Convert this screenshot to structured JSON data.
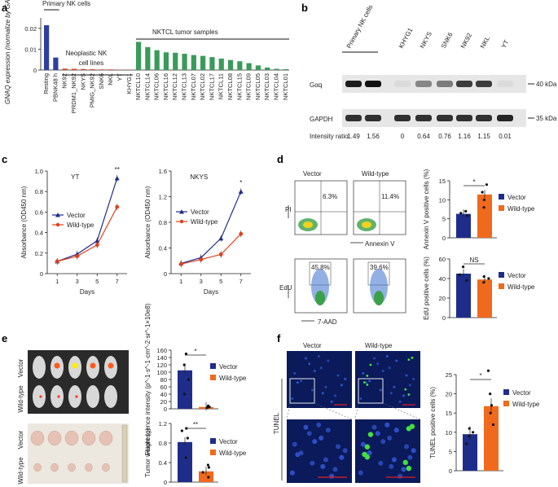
{
  "panel_labels": [
    "a",
    "b",
    "c",
    "d",
    "e",
    "f"
  ],
  "colors": {
    "vector": "#1f2d8a",
    "wildtype": "#f06a1d",
    "green": "#3a9a5a",
    "red": "#d94a2a",
    "primary": "#2f3f9e"
  },
  "chart_data": [
    {
      "id": "a",
      "type": "bar",
      "title": "",
      "ylabel": "GNAQ expression (normalize by GAPDH)",
      "ylim": [
        0,
        0.025
      ],
      "yticks": [
        "0",
        "0.01",
        "0.02"
      ],
      "group_labels": [
        "Primary NK cells",
        "Neoplastic NK cell lines",
        "NKTCL tumor samples"
      ],
      "categories": [
        "Resting",
        "PBNK48 h",
        "NK92",
        "PRDM1_NK92",
        "NKYS",
        "PMIG_NK92",
        "SNK6",
        "NKL",
        "YT",
        "KHYG1",
        "NKTCL10",
        "NKTCL14",
        "NKTCL06",
        "NKTCL16",
        "NKTCL12",
        "NKTCL13",
        "NKTCL07",
        "NKTCL02",
        "NKTCL17",
        "NKTCL11",
        "NKTCL08",
        "NKTCL15",
        "NKTCL09",
        "NKTCL05",
        "NKTCL03",
        "NKTCL04",
        "NKTCL01"
      ],
      "values": [
        0.0215,
        0.006,
        0.0007,
        0.0006,
        0.0005,
        0.0004,
        0.0003,
        0.0003,
        0.0002,
        0.0001,
        0.0135,
        0.011,
        0.0095,
        0.0085,
        0.0083,
        0.0078,
        0.0072,
        0.0068,
        0.0062,
        0.0055,
        0.0048,
        0.0042,
        0.0033,
        0.0022,
        0.0012,
        0.0006,
        0.0004
      ]
    },
    {
      "id": "b",
      "type": "table",
      "header_group": "Primary NK cells",
      "lanes": [
        "KHYG1",
        "NKYS",
        "SNK6",
        "NK92",
        "NKL",
        "YT"
      ],
      "rows": [
        "Gαq",
        "GAPDH"
      ],
      "markers": [
        "40 kDa",
        "35 kDa"
      ],
      "ratio_label": "Intensity ratio",
      "ratios": [
        "1.49",
        "1.56",
        "0",
        "0.64",
        "0.76",
        "1.16",
        "1.15",
        "0.01"
      ]
    },
    {
      "id": "c1",
      "type": "line",
      "title": "YT",
      "xlabel": "Days",
      "ylabel": "Absorbance (OD450 nm)",
      "x": [
        1,
        3,
        5,
        7
      ],
      "ylim": [
        0,
        1.0
      ],
      "yticks": [
        "0",
        "0.2",
        "0.4",
        "0.6",
        "0.8",
        "1.0"
      ],
      "series": [
        {
          "name": "Vector",
          "values": [
            0.12,
            0.19,
            0.32,
            0.93
          ]
        },
        {
          "name": "Wild-type",
          "values": [
            0.12,
            0.17,
            0.28,
            0.65
          ]
        }
      ],
      "annotation": "**"
    },
    {
      "id": "c2",
      "type": "line",
      "title": "NKYS",
      "xlabel": "Days",
      "ylabel": "Absorbance (OD450 nm)",
      "x": [
        1,
        3,
        5,
        7
      ],
      "ylim": [
        0,
        1.6
      ],
      "yticks": [
        "0",
        "0.4",
        "0.8",
        "1.2",
        "1.6"
      ],
      "series": [
        {
          "name": "Vector",
          "values": [
            0.16,
            0.25,
            0.55,
            1.28
          ]
        },
        {
          "name": "Wild-type",
          "values": [
            0.15,
            0.22,
            0.3,
            0.62
          ]
        }
      ],
      "annotation": "*"
    },
    {
      "id": "d1",
      "type": "bar",
      "ylabel": "Annexin V positive cells (%)",
      "ylim": [
        0,
        15
      ],
      "yticks": [
        "0",
        "5",
        "10",
        "15"
      ],
      "categories": [
        "Vector",
        "Wild-type"
      ],
      "values": [
        6.3,
        11.4
      ],
      "annotation": "*"
    },
    {
      "id": "d2",
      "type": "bar",
      "ylabel": "EdU positive cells (%)",
      "ylim": [
        0,
        60
      ],
      "yticks": [
        "0",
        "20",
        "40",
        "60"
      ],
      "categories": [
        "Vector",
        "Wild-type"
      ],
      "values": [
        45,
        39
      ],
      "annotation": "NS"
    },
    {
      "id": "e1",
      "type": "bar",
      "ylabel": "Fluorescence intensity (p^-1·s^-1·cm^-2·sr^-1×10e8)",
      "ylim": [
        0,
        160
      ],
      "yticks": [
        "0",
        "20",
        "40",
        "60",
        "80",
        "100",
        "120",
        "140",
        "160"
      ],
      "categories": [
        "Vector",
        "Wild-type"
      ],
      "values": [
        105,
        5
      ],
      "annotation": "*"
    },
    {
      "id": "e2",
      "type": "bar",
      "ylabel": "Tumor weight (g)",
      "ylim": [
        0,
        1.2
      ],
      "yticks": [
        "0",
        "0.4",
        "0.8",
        "1.2"
      ],
      "categories": [
        "Vector",
        "Wild-type"
      ],
      "values": [
        0.82,
        0.22
      ],
      "annotation": "**"
    },
    {
      "id": "f",
      "type": "bar",
      "ylabel": "TUNEL positive cells (%)",
      "ylim": [
        0,
        25
      ],
      "yticks": [
        "0",
        "5",
        "10",
        "15",
        "20",
        "25"
      ],
      "categories": [
        "Vector",
        "Wild-type"
      ],
      "values": [
        9.5,
        16.8
      ],
      "annotation": "*"
    }
  ],
  "flow": {
    "vector_title": "Vector",
    "wildtype_title": "Wild-type",
    "annexin_vector": "6.3%",
    "annexin_wildtype": "11.4%",
    "edu_vector": "45.8%",
    "edu_wildtype": "39.6%",
    "x_annexin": "Annexin V",
    "y_annexin": "PI",
    "x_edu": "7-AAD",
    "y_edu": "EdU"
  },
  "mice": {
    "row1": "Vector",
    "row2": "Wild-type"
  },
  "tumors": {
    "row1": "Vector",
    "row2": "Wild-type"
  },
  "tunel": {
    "vector": "Vector",
    "wildtype": "Wild-type",
    "side": "TUNEL"
  },
  "legend": {
    "vector": "Vector",
    "wildtype": "Wild-type"
  }
}
